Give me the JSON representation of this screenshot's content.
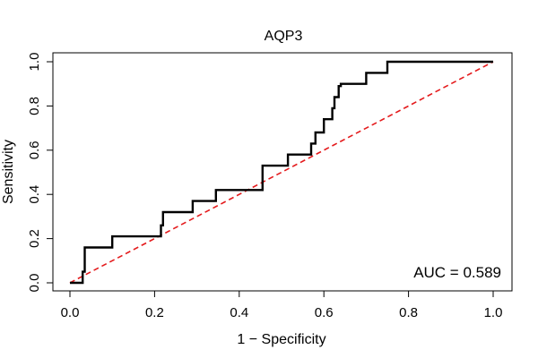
{
  "chart_data": {
    "type": "line",
    "title": "AQP3",
    "xlabel": "1 − Specificity",
    "ylabel": "Sensitivity",
    "xlim": [
      0,
      1
    ],
    "ylim": [
      0,
      1
    ],
    "x_ticks": [
      "0.0",
      "0.2",
      "0.4",
      "0.6",
      "0.8",
      "1.0"
    ],
    "y_ticks": [
      "0.0",
      "0.2",
      "0.4",
      "0.6",
      "0.8",
      "1.0"
    ],
    "grid": false,
    "annotation": "AUC = 0.589",
    "series": [
      {
        "type": "step",
        "color": "#000000",
        "points": [
          [
            0.0,
            0.0
          ],
          [
            0.03,
            0.0
          ],
          [
            0.03,
            0.05
          ],
          [
            0.035,
            0.05
          ],
          [
            0.035,
            0.16
          ],
          [
            0.1,
            0.16
          ],
          [
            0.1,
            0.21
          ],
          [
            0.215,
            0.21
          ],
          [
            0.215,
            0.26
          ],
          [
            0.22,
            0.26
          ],
          [
            0.22,
            0.32
          ],
          [
            0.29,
            0.32
          ],
          [
            0.29,
            0.37
          ],
          [
            0.345,
            0.37
          ],
          [
            0.345,
            0.42
          ],
          [
            0.455,
            0.42
          ],
          [
            0.455,
            0.53
          ],
          [
            0.515,
            0.53
          ],
          [
            0.515,
            0.58
          ],
          [
            0.57,
            0.58
          ],
          [
            0.57,
            0.63
          ],
          [
            0.58,
            0.63
          ],
          [
            0.58,
            0.68
          ],
          [
            0.6,
            0.68
          ],
          [
            0.6,
            0.74
          ],
          [
            0.62,
            0.74
          ],
          [
            0.62,
            0.79
          ],
          [
            0.625,
            0.79
          ],
          [
            0.625,
            0.84
          ],
          [
            0.635,
            0.84
          ],
          [
            0.635,
            0.89
          ],
          [
            0.64,
            0.89
          ],
          [
            0.64,
            0.9
          ],
          [
            0.7,
            0.9
          ],
          [
            0.7,
            0.95
          ],
          [
            0.75,
            0.95
          ],
          [
            0.75,
            1.0
          ],
          [
            1.0,
            1.0
          ]
        ]
      },
      {
        "type": "reference",
        "color": "#e41a1c",
        "dash": true,
        "points": [
          [
            0.0,
            0.0
          ],
          [
            1.0,
            1.0
          ]
        ]
      }
    ]
  }
}
